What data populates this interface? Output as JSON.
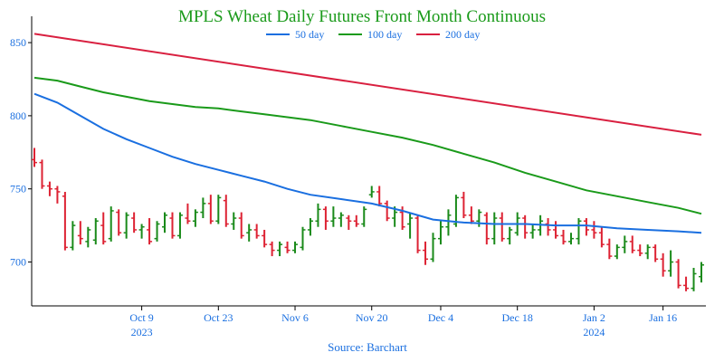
{
  "colors": {
    "up": "#1a8a1a",
    "down": "#dd2233",
    "ma50": "#1a6fe0",
    "ma100": "#1a9a1a",
    "ma200": "#d92040",
    "title": "#1a9a1a",
    "axis_text": "#1a6fe0"
  },
  "chart_data": {
    "type": "ohlc",
    "title": "MPLS Wheat Daily Futures Front Month Continuous",
    "source": "Source: Barchart",
    "legend_position": "top",
    "ylim": [
      670,
      868
    ],
    "yticks": [
      700,
      750,
      800,
      850
    ],
    "xticks": [
      {
        "label": "Oct 9",
        "sublabel": "2023",
        "index": 14
      },
      {
        "label": "Oct 23",
        "sublabel": "",
        "index": 24
      },
      {
        "label": "Nov 6",
        "sublabel": "",
        "index": 34
      },
      {
        "label": "Nov 20",
        "sublabel": "",
        "index": 44
      },
      {
        "label": "Dec 4",
        "sublabel": "",
        "index": 53
      },
      {
        "label": "Dec 18",
        "sublabel": "",
        "index": 63
      },
      {
        "label": "Jan 2",
        "sublabel": "2024",
        "index": 73
      },
      {
        "label": "Jan 16",
        "sublabel": "",
        "index": 82
      }
    ],
    "x_count": 88,
    "ohlc": [
      [
        770,
        778,
        765,
        768
      ],
      [
        768,
        770,
        750,
        752
      ],
      [
        752,
        755,
        745,
        750
      ],
      [
        750,
        752,
        740,
        748
      ],
      [
        745,
        748,
        708,
        710
      ],
      [
        710,
        728,
        708,
        725
      ],
      [
        718,
        728,
        712,
        716
      ],
      [
        714,
        724,
        710,
        722
      ],
      [
        715,
        730,
        712,
        728
      ],
      [
        725,
        734,
        712,
        714
      ],
      [
        716,
        738,
        714,
        735
      ],
      [
        734,
        736,
        718,
        720
      ],
      [
        720,
        734,
        716,
        732
      ],
      [
        730,
        734,
        720,
        722
      ],
      [
        722,
        726,
        716,
        724
      ],
      [
        722,
        730,
        712,
        714
      ],
      [
        716,
        728,
        714,
        726
      ],
      [
        724,
        734,
        720,
        732
      ],
      [
        730,
        734,
        716,
        718
      ],
      [
        718,
        734,
        716,
        732
      ],
      [
        730,
        740,
        726,
        728
      ],
      [
        728,
        736,
        724,
        734
      ],
      [
        734,
        744,
        730,
        740
      ],
      [
        740,
        746,
        726,
        728
      ],
      [
        728,
        746,
        726,
        744
      ],
      [
        742,
        746,
        724,
        726
      ],
      [
        726,
        734,
        722,
        730
      ],
      [
        730,
        734,
        716,
        718
      ],
      [
        720,
        726,
        714,
        722
      ],
      [
        722,
        726,
        716,
        718
      ],
      [
        718,
        722,
        710,
        712
      ],
      [
        712,
        714,
        704,
        708
      ],
      [
        708,
        714,
        704,
        712
      ],
      [
        710,
        714,
        706,
        708
      ],
      [
        708,
        714,
        706,
        712
      ],
      [
        710,
        724,
        708,
        722
      ],
      [
        722,
        730,
        718,
        728
      ],
      [
        728,
        740,
        724,
        736
      ],
      [
        736,
        738,
        722,
        728
      ],
      [
        728,
        738,
        724,
        730
      ],
      [
        730,
        734,
        724,
        732
      ],
      [
        730,
        732,
        722,
        728
      ],
      [
        728,
        732,
        724,
        726
      ],
      [
        726,
        738,
        724,
        736
      ],
      [
        746,
        752,
        744,
        748
      ],
      [
        748,
        752,
        738,
        740
      ],
      [
        740,
        742,
        728,
        730
      ],
      [
        730,
        738,
        724,
        734
      ],
      [
        734,
        738,
        722,
        724
      ],
      [
        726,
        734,
        716,
        730
      ],
      [
        730,
        732,
        706,
        708
      ],
      [
        708,
        714,
        698,
        702
      ],
      [
        702,
        720,
        700,
        716
      ],
      [
        716,
        728,
        712,
        724
      ],
      [
        724,
        736,
        718,
        732
      ],
      [
        726,
        746,
        724,
        744
      ],
      [
        744,
        748,
        730,
        732
      ],
      [
        732,
        738,
        726,
        728
      ],
      [
        728,
        736,
        724,
        734
      ],
      [
        732,
        734,
        712,
        716
      ],
      [
        716,
        734,
        712,
        730
      ],
      [
        730,
        734,
        714,
        716
      ],
      [
        716,
        724,
        712,
        722
      ],
      [
        720,
        734,
        718,
        730
      ],
      [
        730,
        732,
        716,
        720
      ],
      [
        720,
        726,
        716,
        722
      ],
      [
        722,
        732,
        718,
        728
      ],
      [
        726,
        730,
        718,
        722
      ],
      [
        722,
        728,
        716,
        718
      ],
      [
        718,
        722,
        712,
        714
      ],
      [
        714,
        720,
        712,
        716
      ],
      [
        716,
        730,
        712,
        728
      ],
      [
        728,
        730,
        718,
        722
      ],
      [
        722,
        728,
        716,
        720
      ],
      [
        720,
        724,
        710,
        712
      ],
      [
        712,
        716,
        702,
        704
      ],
      [
        704,
        712,
        702,
        710
      ],
      [
        710,
        718,
        706,
        714
      ],
      [
        714,
        718,
        706,
        708
      ],
      [
        708,
        712,
        704,
        706
      ],
      [
        706,
        712,
        702,
        710
      ],
      [
        710,
        712,
        700,
        702
      ],
      [
        702,
        706,
        690,
        694
      ],
      [
        694,
        708,
        690,
        700
      ],
      [
        700,
        702,
        682,
        684
      ],
      [
        684,
        690,
        680,
        682
      ],
      [
        682,
        696,
        680,
        692
      ],
      [
        690,
        700,
        686,
        698
      ]
    ],
    "series": [
      {
        "name": "50 day",
        "color_key": "ma50",
        "x": [
          0,
          3,
          6,
          9,
          12,
          15,
          18,
          21,
          24,
          27,
          30,
          33,
          36,
          40,
          44,
          48,
          52,
          56,
          60,
          64,
          68,
          72,
          76,
          80,
          84,
          87
        ],
        "values": [
          815,
          809,
          800,
          791,
          784,
          778,
          772,
          767,
          763,
          759,
          755,
          750,
          746,
          743,
          740,
          735,
          729,
          727,
          726,
          726,
          725,
          725,
          723,
          722,
          721,
          720
        ]
      },
      {
        "name": "100 day",
        "color_key": "ma100",
        "x": [
          0,
          3,
          6,
          9,
          12,
          15,
          18,
          21,
          24,
          27,
          30,
          33,
          36,
          40,
          44,
          48,
          52,
          56,
          60,
          64,
          68,
          72,
          76,
          80,
          84,
          87
        ],
        "values": [
          826,
          824,
          820,
          816,
          813,
          810,
          808,
          806,
          805,
          803,
          801,
          799,
          797,
          793,
          789,
          785,
          780,
          774,
          768,
          761,
          755,
          749,
          745,
          741,
          737,
          733
        ]
      },
      {
        "name": "200 day",
        "color_key": "ma200",
        "x": [
          0,
          87
        ],
        "values": [
          856,
          787
        ]
      }
    ]
  }
}
